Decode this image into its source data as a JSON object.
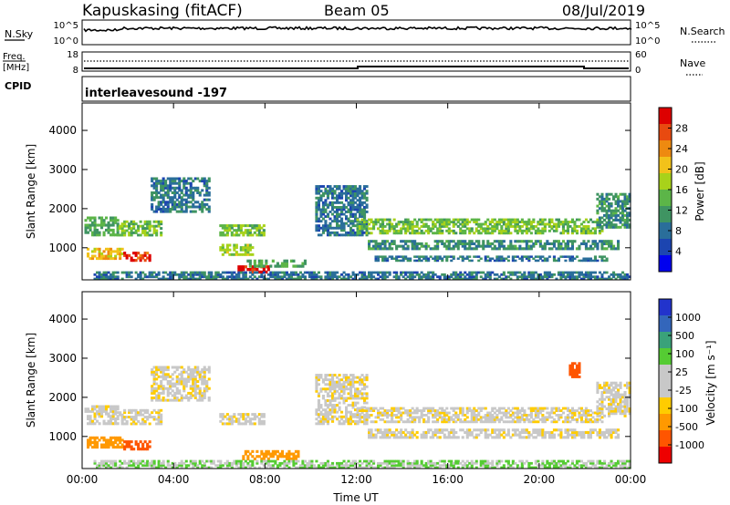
{
  "header": {
    "station": "Kapuskasing (fitACF)",
    "beam": "Beam 05",
    "date": "08/Jul/2019"
  },
  "noise_panel": {
    "left_label": "N.Sky",
    "right_label": "N.Search",
    "left_ticks": [
      "10^5",
      "10^0"
    ],
    "right_ticks": [
      "10^5",
      "10^0"
    ]
  },
  "freq_panel": {
    "left_label_1": "Freq.",
    "left_label_2": "[MHz]",
    "left_ticks": [
      "18",
      "8"
    ],
    "right_ticks": [
      "60",
      "0"
    ],
    "right_label": "Nave",
    "cpid_label": "CPID"
  },
  "cpid_text": "interleavesound  -197",
  "colors": {
    "power": [
      "#0000ee",
      "#1c45b0",
      "#2a6e9a",
      "#3f9462",
      "#5cb548",
      "#a8d21a",
      "#f2c21a",
      "#ee8a10",
      "#e84a10",
      "#dd0000"
    ],
    "velocity": [
      "#2233cc",
      "#3366bb",
      "#3aa27a",
      "#55cc33",
      "#c8c8c8",
      "#c8c8c8",
      "#ffcc00",
      "#ff9900",
      "#ff5500",
      "#ee0000"
    ]
  },
  "chart_data": [
    {
      "type": "heatmap",
      "title": "Power",
      "ylabel": "Slant Range [km]",
      "ylim": [
        180,
        4700
      ],
      "yticks": [
        "1000",
        "2000",
        "3000",
        "4000"
      ],
      "colorbar": {
        "label": "Power [dB]",
        "ticks": [
          "4",
          "8",
          "12",
          "16",
          "20",
          "24",
          "28"
        ],
        "range": [
          0,
          30
        ]
      },
      "echo_regions": [
        {
          "t": [
            0.1,
            1.6
          ],
          "r": [
            1300,
            1800
          ],
          "value": 12
        },
        {
          "t": [
            0.2,
            1.8
          ],
          "r": [
            700,
            1000
          ],
          "value": 20
        },
        {
          "t": [
            1.8,
            3.0
          ],
          "r": [
            650,
            900
          ],
          "value": 26
        },
        {
          "t": [
            1.5,
            3.5
          ],
          "r": [
            1300,
            1700
          ],
          "value": 14
        },
        {
          "t": [
            3.0,
            5.6
          ],
          "r": [
            1900,
            2800
          ],
          "value": 8
        },
        {
          "t": [
            6.0,
            8.0
          ],
          "r": [
            1300,
            1600
          ],
          "value": 14
        },
        {
          "t": [
            6.0,
            7.5
          ],
          "r": [
            800,
            1100
          ],
          "value": 16
        },
        {
          "t": [
            6.8,
            8.2
          ],
          "r": [
            350,
            550
          ],
          "value": 28
        },
        {
          "t": [
            7.2,
            9.8
          ],
          "r": [
            500,
            700
          ],
          "value": 12
        },
        {
          "t": [
            0.5,
            24.0
          ],
          "r": [
            180,
            400
          ],
          "value": 8
        },
        {
          "t": [
            10.2,
            12.5
          ],
          "r": [
            1300,
            2600
          ],
          "value": 8
        },
        {
          "t": [
            12.0,
            22.8
          ],
          "r": [
            1350,
            1750
          ],
          "value": 14
        },
        {
          "t": [
            12.5,
            23.5
          ],
          "r": [
            950,
            1200
          ],
          "value": 10
        },
        {
          "t": [
            12.8,
            23.0
          ],
          "r": [
            650,
            800
          ],
          "value": 8
        },
        {
          "t": [
            22.5,
            24.0
          ],
          "r": [
            1500,
            2400
          ],
          "value": 10
        }
      ]
    },
    {
      "type": "heatmap",
      "title": "Velocity",
      "ylabel": "Slant Range [km]",
      "xlabel": "Time UT",
      "ylim": [
        180,
        4700
      ],
      "xlim": [
        0,
        24
      ],
      "xticks": [
        "00:00",
        "04:00",
        "08:00",
        "12:00",
        "16:00",
        "20:00",
        "00:00"
      ],
      "yticks": [
        "1000",
        "2000",
        "3000",
        "4000"
      ],
      "colorbar": {
        "label": "Velocity [m s⁻¹]",
        "ticks": [
          "1000",
          "500",
          "100",
          "25",
          "-25",
          "-100",
          "-500",
          "-1000"
        ]
      },
      "echo_regions": [
        {
          "t": [
            0.1,
            1.6
          ],
          "r": [
            1300,
            1800
          ],
          "value": 0
        },
        {
          "t": [
            0.2,
            1.8
          ],
          "r": [
            700,
            1000
          ],
          "value": -150
        },
        {
          "t": [
            1.8,
            3.0
          ],
          "r": [
            650,
            900
          ],
          "value": -400
        },
        {
          "t": [
            1.5,
            3.5
          ],
          "r": [
            1300,
            1700
          ],
          "value": 0
        },
        {
          "t": [
            3.0,
            5.6
          ],
          "r": [
            1900,
            2800
          ],
          "value": 0
        },
        {
          "t": [
            6.0,
            8.0
          ],
          "r": [
            1300,
            1600
          ],
          "value": 0
        },
        {
          "t": [
            7.0,
            9.5
          ],
          "r": [
            400,
            650
          ],
          "value": -80
        },
        {
          "t": [
            0.5,
            24.0
          ],
          "r": [
            180,
            400
          ],
          "value": 60
        },
        {
          "t": [
            10.2,
            12.5
          ],
          "r": [
            1300,
            2600
          ],
          "value": 0
        },
        {
          "t": [
            12.0,
            22.8
          ],
          "r": [
            1350,
            1750
          ],
          "value": 0
        },
        {
          "t": [
            12.5,
            23.5
          ],
          "r": [
            950,
            1200
          ],
          "value": 0
        },
        {
          "t": [
            21.3,
            21.8
          ],
          "r": [
            2500,
            2900
          ],
          "value": -400
        },
        {
          "t": [
            22.5,
            24.0
          ],
          "r": [
            1500,
            2400
          ],
          "value": 0
        }
      ]
    }
  ]
}
